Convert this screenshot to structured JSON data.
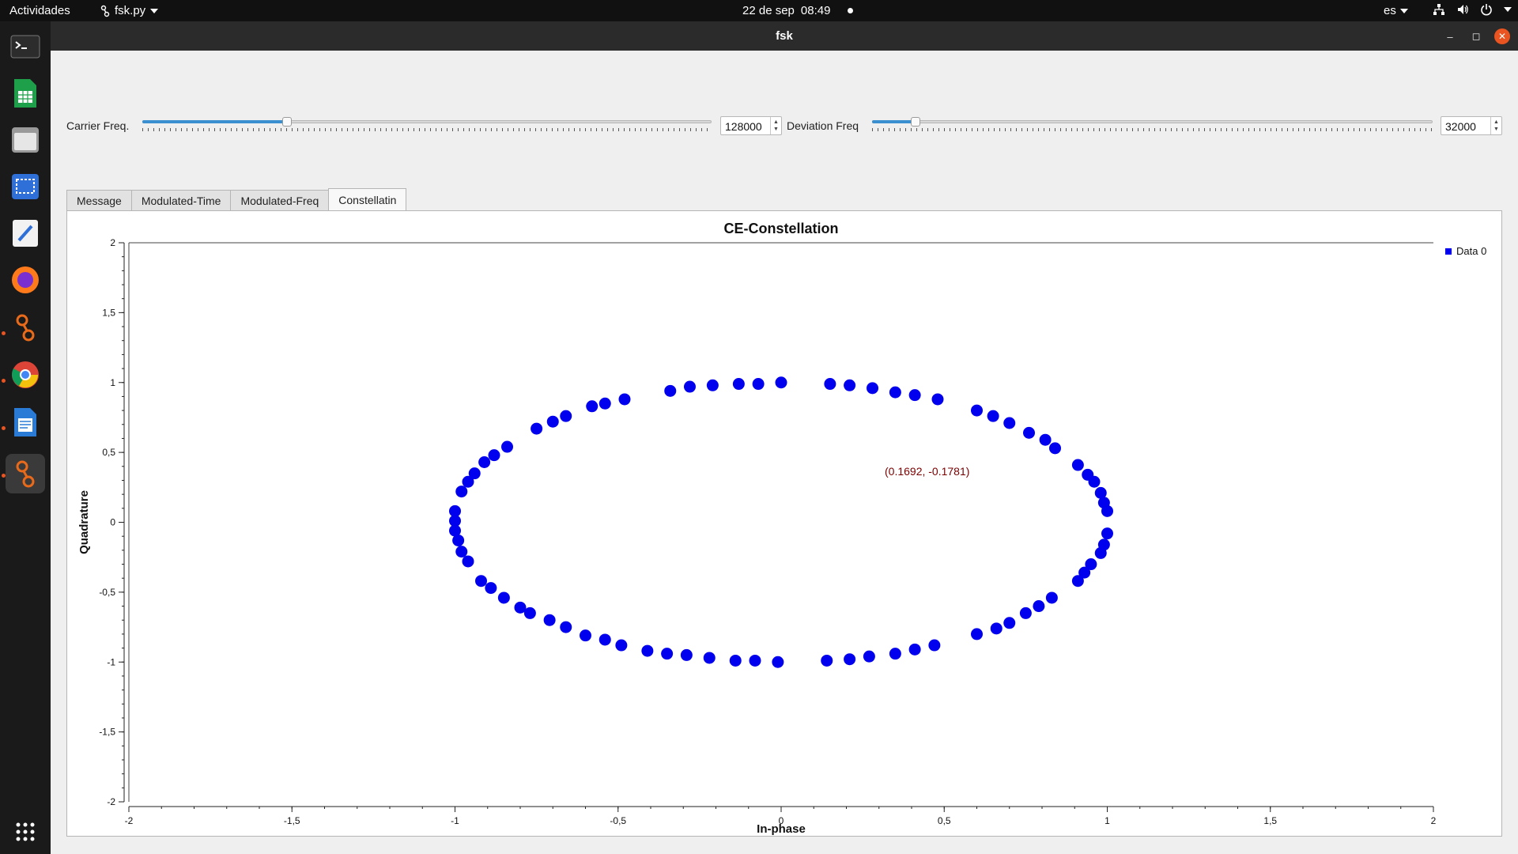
{
  "topbar": {
    "activities": "Actividades",
    "app_menu": "fsk.py",
    "date": "22 de sep",
    "time": "08:49",
    "language": "es"
  },
  "window": {
    "title": "fsk"
  },
  "controls": {
    "carrier": {
      "label": "Carrier Freq.",
      "value": "128000",
      "slider_fraction": 0.25
    },
    "deviation": {
      "label": "Deviation Freq",
      "value": "32000",
      "slider_fraction": 0.07
    }
  },
  "tabs": [
    {
      "label": "Message"
    },
    {
      "label": "Modulated-Time"
    },
    {
      "label": "Modulated-Freq"
    },
    {
      "label": "Constellatin",
      "active": true
    }
  ],
  "chart_data": {
    "type": "scatter",
    "title": "CE-Constellation",
    "xlabel": "In-phase",
    "ylabel": "Quadrature",
    "xlim": [
      -2,
      2
    ],
    "ylim": [
      -2,
      2
    ],
    "xticks": [
      -2,
      -1.5,
      -1,
      -0.5,
      0,
      0.5,
      1,
      1.5,
      2
    ],
    "yticks": [
      -2,
      -1.5,
      -1,
      -0.5,
      0,
      0.5,
      1,
      1.5,
      2
    ],
    "xtick_labels": [
      "-2",
      "-1,5",
      "-1",
      "-0,5",
      "0",
      "0,5",
      "1",
      "1,5",
      "2"
    ],
    "ytick_labels": [
      "-2",
      "-1,5",
      "-1",
      "-0,5",
      "0",
      "0,5",
      "1",
      "1,5",
      "2"
    ],
    "legend": {
      "position": "top-right",
      "entries": [
        "Data 0"
      ]
    },
    "cursor_readout": "(0.1692, -0.1781)",
    "series": [
      {
        "name": "Data 0",
        "color": "#0000ee",
        "points": [
          [
            0.0,
            1.0
          ],
          [
            -0.07,
            0.99
          ],
          [
            -0.13,
            0.99
          ],
          [
            -0.21,
            0.98
          ],
          [
            -0.28,
            0.97
          ],
          [
            -0.34,
            0.94
          ],
          [
            -0.48,
            0.88
          ],
          [
            -0.54,
            0.85
          ],
          [
            -0.58,
            0.83
          ],
          [
            -0.66,
            0.76
          ],
          [
            -0.7,
            0.72
          ],
          [
            -0.75,
            0.67
          ],
          [
            -0.84,
            0.54
          ],
          [
            -0.88,
            0.48
          ],
          [
            -0.91,
            0.43
          ],
          [
            -0.94,
            0.35
          ],
          [
            -0.96,
            0.29
          ],
          [
            -0.98,
            0.22
          ],
          [
            -1.0,
            0.08
          ],
          [
            -1.0,
            0.01
          ],
          [
            -1.0,
            -0.06
          ],
          [
            -0.99,
            -0.13
          ],
          [
            -0.98,
            -0.21
          ],
          [
            -0.96,
            -0.28
          ],
          [
            -0.92,
            -0.42
          ],
          [
            -0.89,
            -0.47
          ],
          [
            -0.85,
            -0.54
          ],
          [
            -0.8,
            -0.61
          ],
          [
            -0.77,
            -0.65
          ],
          [
            -0.71,
            -0.7
          ],
          [
            -0.66,
            -0.75
          ],
          [
            -0.6,
            -0.81
          ],
          [
            -0.54,
            -0.84
          ],
          [
            -0.49,
            -0.88
          ],
          [
            -0.41,
            -0.92
          ],
          [
            -0.35,
            -0.94
          ],
          [
            -0.29,
            -0.95
          ],
          [
            -0.22,
            -0.97
          ],
          [
            -0.14,
            -0.99
          ],
          [
            -0.08,
            -0.99
          ],
          [
            -0.01,
            -1.0
          ],
          [
            0.14,
            -0.99
          ],
          [
            0.21,
            -0.98
          ],
          [
            0.27,
            -0.96
          ],
          [
            0.35,
            -0.94
          ],
          [
            0.41,
            -0.91
          ],
          [
            0.47,
            -0.88
          ],
          [
            0.6,
            -0.8
          ],
          [
            0.66,
            -0.76
          ],
          [
            0.7,
            -0.72
          ],
          [
            0.75,
            -0.65
          ],
          [
            0.79,
            -0.6
          ],
          [
            0.83,
            -0.54
          ],
          [
            0.91,
            -0.42
          ],
          [
            0.93,
            -0.36
          ],
          [
            0.95,
            -0.3
          ],
          [
            0.98,
            -0.22
          ],
          [
            0.99,
            -0.16
          ],
          [
            1.0,
            -0.08
          ],
          [
            1.0,
            0.08
          ],
          [
            0.99,
            0.14
          ],
          [
            0.98,
            0.21
          ],
          [
            0.96,
            0.29
          ],
          [
            0.94,
            0.34
          ],
          [
            0.91,
            0.41
          ],
          [
            0.84,
            0.53
          ],
          [
            0.81,
            0.59
          ],
          [
            0.76,
            0.64
          ],
          [
            0.7,
            0.71
          ],
          [
            0.65,
            0.76
          ],
          [
            0.6,
            0.8
          ],
          [
            0.48,
            0.88
          ],
          [
            0.41,
            0.91
          ],
          [
            0.35,
            0.93
          ],
          [
            0.28,
            0.96
          ],
          [
            0.21,
            0.98
          ],
          [
            0.15,
            0.99
          ]
        ]
      }
    ]
  }
}
